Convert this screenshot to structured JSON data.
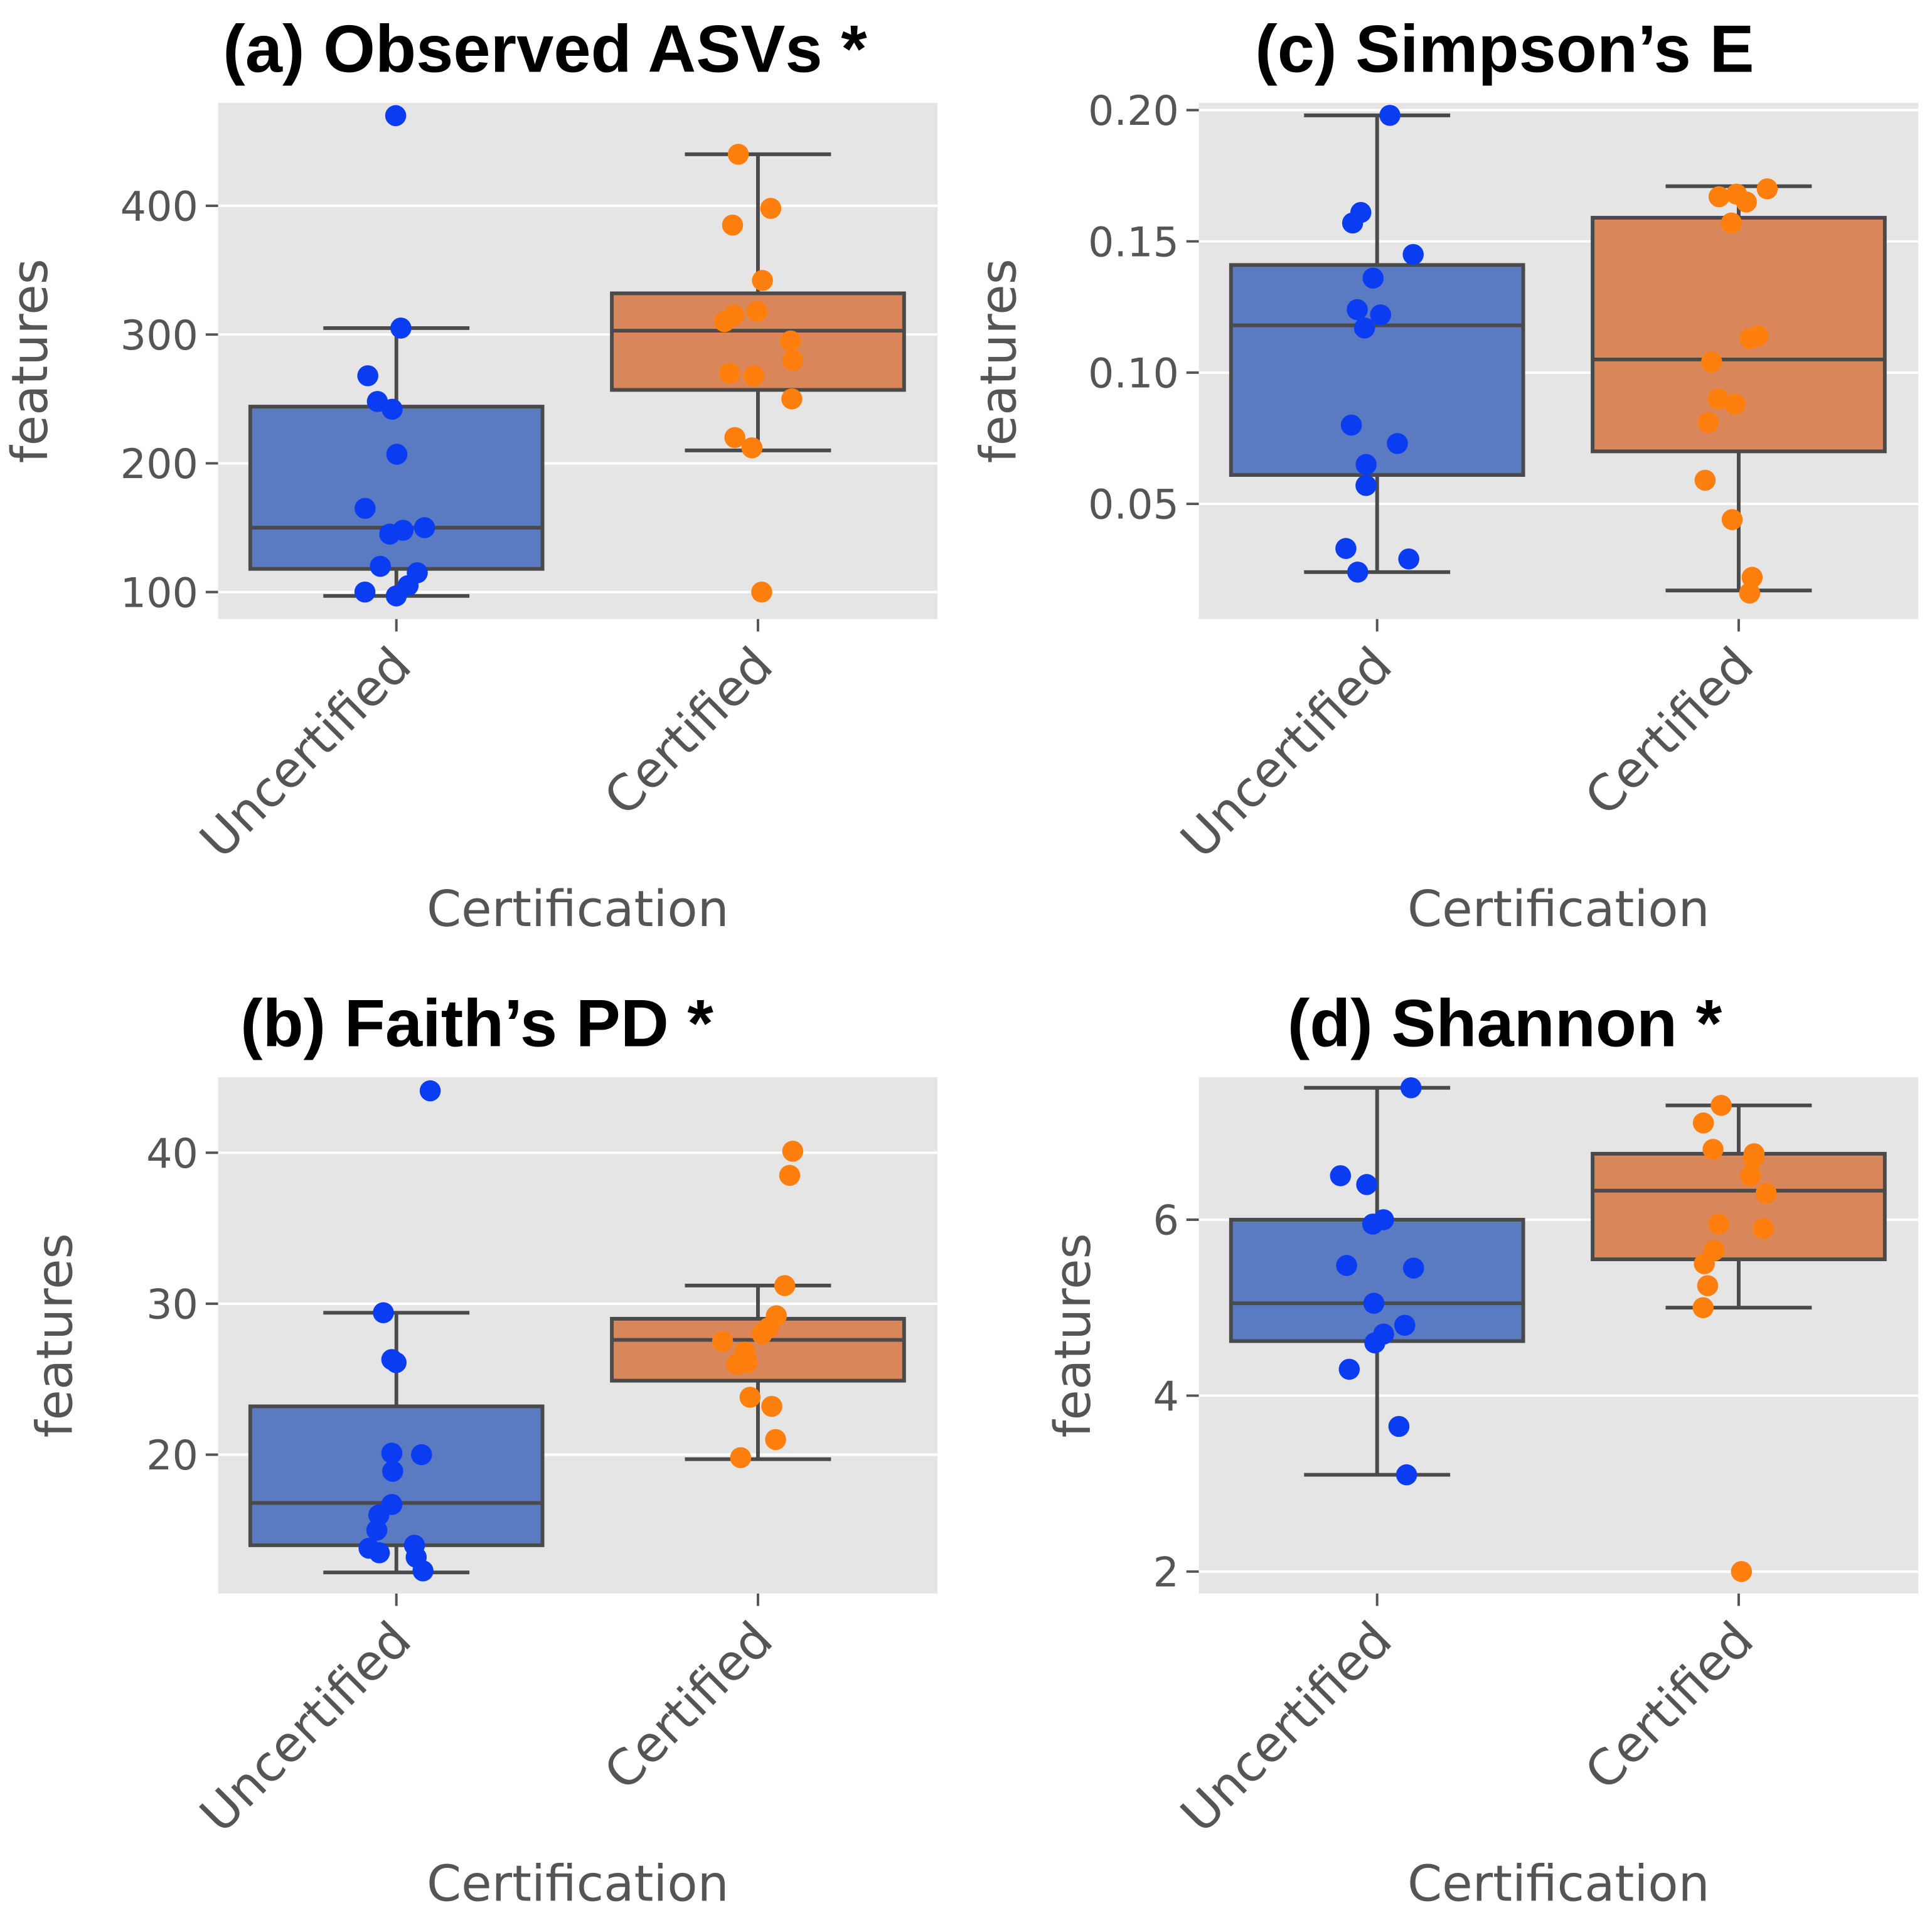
{
  "chart_data": [
    {
      "id": "a",
      "type": "box",
      "title": "(a) Observed ASVs *",
      "xlabel": "Certification",
      "ylabel": "features",
      "categories": [
        "Uncertified",
        "Certified"
      ],
      "ylim": [
        79,
        480
      ],
      "yticks": [
        100,
        200,
        300,
        400
      ],
      "yticklabels": [
        "100",
        "200",
        "300",
        "400"
      ],
      "grid": true,
      "boxes": [
        {
          "q1": 118,
          "median": 150,
          "q3": 244,
          "whislo": 97,
          "whishi": 305
        },
        {
          "q1": 257,
          "median": 303,
          "q3": 332,
          "whislo": 210,
          "whishi": 440
        }
      ],
      "points": [
        [
          470,
          305,
          268,
          248,
          242,
          207,
          165,
          150,
          148,
          145,
          120,
          115,
          105,
          100,
          97
        ],
        [
          440,
          398,
          385,
          342,
          318,
          315,
          310,
          295,
          280,
          270,
          268,
          250,
          220,
          212,
          100
        ]
      ]
    },
    {
      "id": "c",
      "type": "box",
      "title": "(c) Simpson’s E",
      "xlabel": "Certification",
      "ylabel": "features",
      "categories": [
        "Uncertified",
        "Certified"
      ],
      "ylim": [
        0.0061,
        0.2028
      ],
      "yticks": [
        0.05,
        0.1,
        0.15,
        0.2
      ],
      "yticklabels": [
        "0.05",
        "0.10",
        "0.15",
        "0.20"
      ],
      "grid": true,
      "boxes": [
        {
          "q1": 0.061,
          "median": 0.118,
          "q3": 0.141,
          "whislo": 0.024,
          "whishi": 0.198
        },
        {
          "q1": 0.07,
          "median": 0.105,
          "q3": 0.159,
          "whislo": 0.017,
          "whishi": 0.171
        }
      ],
      "points": [
        [
          0.198,
          0.161,
          0.157,
          0.145,
          0.136,
          0.124,
          0.122,
          0.117,
          0.08,
          0.073,
          0.065,
          0.057,
          0.033,
          0.029,
          0.024
        ],
        [
          0.17,
          0.168,
          0.167,
          0.165,
          0.157,
          0.114,
          0.113,
          0.104,
          0.09,
          0.088,
          0.081,
          0.059,
          0.044,
          0.022,
          0.016
        ]
      ]
    },
    {
      "id": "b",
      "type": "box",
      "title": "(b) Faith’s PD *",
      "xlabel": "Certification",
      "ylabel": "features",
      "categories": [
        "Uncertified",
        "Certified"
      ],
      "ylim": [
        10.8,
        45
      ],
      "yticks": [
        20,
        30,
        40
      ],
      "yticklabels": [
        "20",
        "30",
        "40"
      ],
      "grid": true,
      "boxes": [
        {
          "q1": 14.0,
          "median": 16.8,
          "q3": 23.2,
          "whislo": 12.2,
          "whishi": 29.4
        },
        {
          "q1": 24.9,
          "median": 27.6,
          "q3": 29.0,
          "whislo": 19.7,
          "whishi": 31.2
        }
      ],
      "points": [
        [
          44.1,
          29.4,
          26.3,
          26.1,
          20.1,
          20.0,
          18.9,
          16.7,
          16.0,
          15.0,
          14.0,
          13.8,
          13.5,
          13.2,
          12.3
        ],
        [
          40.1,
          38.5,
          31.2,
          29.2,
          28.4,
          28.0,
          27.5,
          26.8,
          26.1,
          26.0,
          23.8,
          23.2,
          21.0,
          19.8
        ]
      ]
    },
    {
      "id": "d",
      "type": "box",
      "title": "(d) Shannon *",
      "xlabel": "Certification",
      "ylabel": "features",
      "categories": [
        "Uncertified",
        "Certified"
      ],
      "ylim": [
        1.75,
        7.62
      ],
      "yticks": [
        2,
        4,
        6
      ],
      "yticklabels": [
        "2",
        "4",
        "6"
      ],
      "grid": true,
      "boxes": [
        {
          "q1": 4.62,
          "median": 5.05,
          "q3": 6.0,
          "whislo": 3.1,
          "whishi": 7.5
        },
        {
          "q1": 5.55,
          "median": 6.33,
          "q3": 6.75,
          "whislo": 5.0,
          "whishi": 7.3
        }
      ],
      "points": [
        [
          7.5,
          6.5,
          6.4,
          6.0,
          5.95,
          5.48,
          5.45,
          5.05,
          4.8,
          4.7,
          4.6,
          4.3,
          3.65,
          3.1
        ],
        [
          7.3,
          7.1,
          6.8,
          6.75,
          6.7,
          6.5,
          6.3,
          5.95,
          5.9,
          5.65,
          5.5,
          5.25,
          5.0,
          2.0
        ]
      ]
    }
  ],
  "colors": {
    "box": [
      "#5a7bc2",
      "#d9865a"
    ],
    "points": [
      "#0a3cf2",
      "#ff7f0e"
    ],
    "background": "#e5e5e5",
    "edge": "#4a4a4a"
  }
}
